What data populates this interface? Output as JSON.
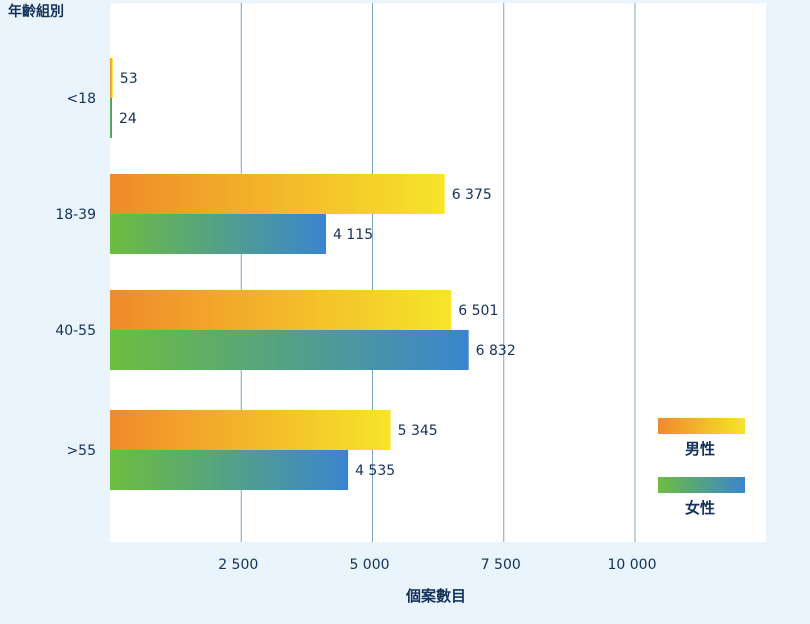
{
  "chart_data": {
    "type": "bar",
    "orientation": "horizontal",
    "title": "年齡組別",
    "xlabel": "個案數目",
    "ylabel": "年齡組別",
    "xlim": [
      0,
      12500
    ],
    "xticks": [
      2500,
      5000,
      7500,
      10000
    ],
    "xtick_labels": [
      "2 500",
      "5 000",
      "7 500",
      "10  000"
    ],
    "grid": "vertical",
    "categories": [
      "<18",
      "18-39",
      "40-55",
      ">55"
    ],
    "series": [
      {
        "name": "男性",
        "values": [
          53,
          6375,
          6501,
          5345
        ],
        "value_labels": [
          "53",
          "6 375",
          "6 501",
          "5 345"
        ],
        "gradient": [
          "#f08a2a",
          "#f6e52a"
        ]
      },
      {
        "name": "女性",
        "values": [
          24,
          4115,
          6832,
          4535
        ],
        "value_labels": [
          "24",
          "4 115",
          "6 832",
          "4 535"
        ],
        "gradient": [
          "#6dbd3f",
          "#3a85cf"
        ]
      }
    ],
    "legend": "bottom-right"
  },
  "colors": {
    "page_background": "#eaf4fc",
    "plot_background": "#ffffff",
    "grid": "#7fa4c4",
    "text": "#14315c"
  }
}
